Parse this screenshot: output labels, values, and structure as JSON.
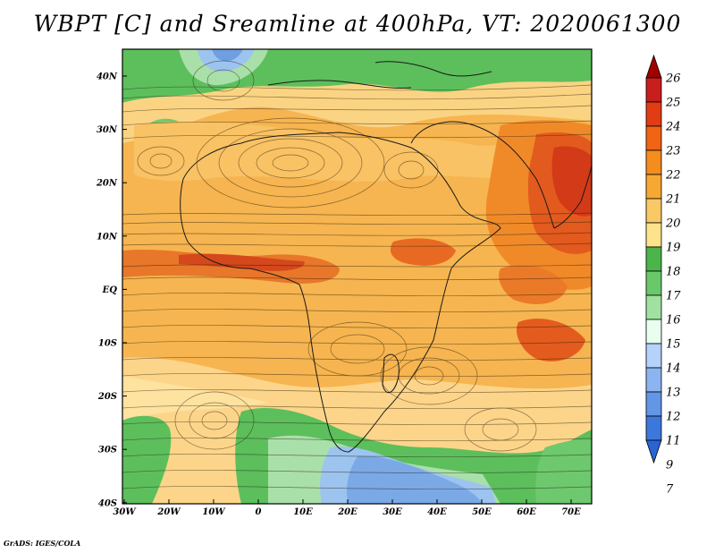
{
  "title": "WBPT [C] and Sreamline at 400hPa, VT: 2020061300",
  "credit": "GrADS: IGES/COLA",
  "map": {
    "lat_ticks": [
      "40N",
      "30N",
      "20N",
      "10N",
      "EQ",
      "10S",
      "20S",
      "30S",
      "40S"
    ],
    "lon_ticks": [
      "30W",
      "20W",
      "10W",
      "0",
      "10E",
      "20E",
      "30E",
      "40E",
      "50E",
      "60E",
      "70E"
    ],
    "lat_range": [
      -40,
      45
    ],
    "lon_range": [
      -30,
      75
    ],
    "field": "WBPT",
    "units": "C",
    "level": "400hPa",
    "valid_time": "2020061300"
  },
  "colorbar": {
    "levels": [
      "26",
      "25",
      "24",
      "23",
      "22",
      "21",
      "20",
      "19",
      "18",
      "17",
      "16",
      "15",
      "14",
      "13",
      "12",
      "11",
      "9",
      "7"
    ],
    "colors": [
      "#a00000",
      "#c81e1e",
      "#e13c14",
      "#f06414",
      "#f58c1e",
      "#f7a832",
      "#fac864",
      "#fce38c",
      "#4bb44b",
      "#6ac86a",
      "#a0e0a0",
      "#e8fff0",
      "#b4d2fa",
      "#8cb4f0",
      "#6496e6",
      "#3c78dc",
      "#2864d2"
    ]
  }
}
